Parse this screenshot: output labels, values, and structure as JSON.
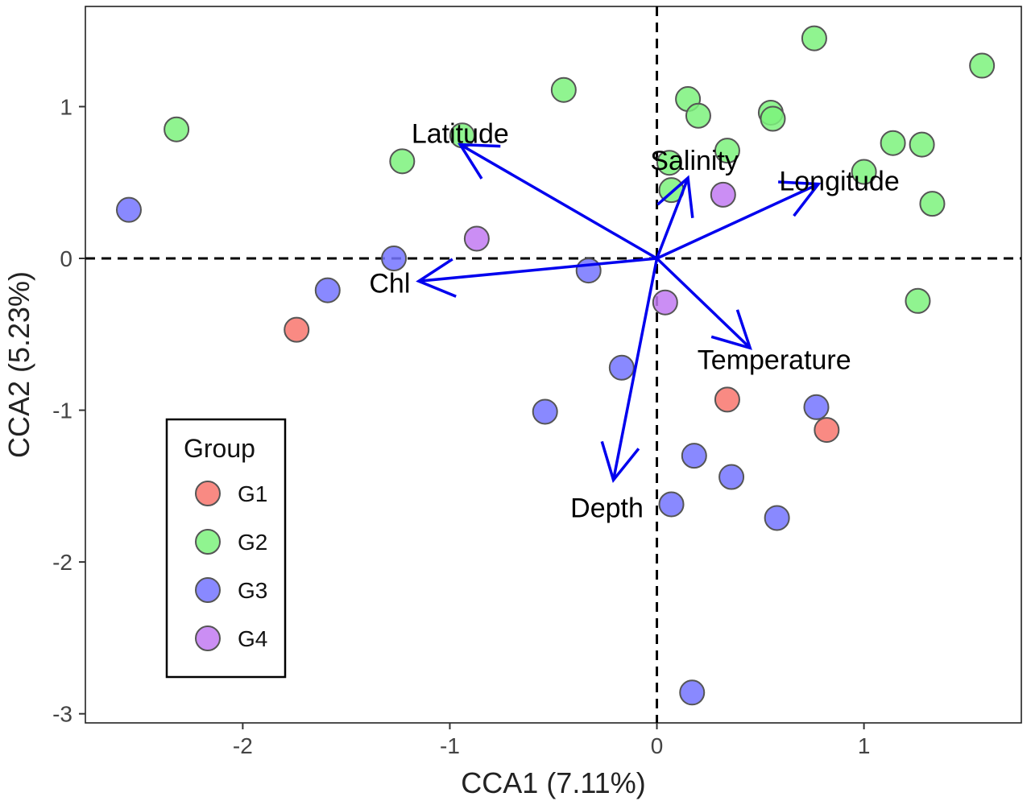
{
  "chart_data": {
    "type": "scatter",
    "title": "",
    "xlabel": "CCA1 (7.11%)",
    "ylabel": "CCA2 (5.23%)",
    "xlim": [
      -2.76,
      1.76
    ],
    "ylim": [
      -3.06,
      1.66
    ],
    "xticks": [
      -2,
      -1,
      0,
      1
    ],
    "yticks": [
      -3,
      -2,
      -1,
      0,
      1
    ],
    "xtick_labels": [
      "-2",
      "-1",
      "0",
      "1"
    ],
    "ytick_labels": [
      "-3",
      "-2",
      "-1",
      "0",
      "1"
    ],
    "grid": false,
    "reference_lines": {
      "x": 0,
      "y": 0,
      "style": "dashed"
    },
    "legend": {
      "title": "Group",
      "placement": "bottom-left",
      "entries": [
        "G1",
        "G2",
        "G3",
        "G4"
      ]
    },
    "series": [
      {
        "name": "G1",
        "color": "#f8766d",
        "points": [
          [
            -1.74,
            -0.47
          ],
          [
            0.34,
            -0.93
          ],
          [
            0.82,
            -1.13
          ]
        ]
      },
      {
        "name": "G2",
        "color": "#7cf27c",
        "points": [
          [
            -2.32,
            0.85
          ],
          [
            -1.23,
            0.64
          ],
          [
            -0.94,
            0.81
          ],
          [
            -0.45,
            1.11
          ],
          [
            0.15,
            1.05
          ],
          [
            0.2,
            0.94
          ],
          [
            0.34,
            0.71
          ],
          [
            0.55,
            0.96
          ],
          [
            0.56,
            0.92
          ],
          [
            0.76,
            1.45
          ],
          [
            1.0,
            0.57
          ],
          [
            1.14,
            0.76
          ],
          [
            1.28,
            0.75
          ],
          [
            1.33,
            0.36
          ],
          [
            1.57,
            1.27
          ],
          [
            1.26,
            -0.28
          ],
          [
            0.06,
            0.63
          ],
          [
            0.07,
            0.45
          ]
        ]
      },
      {
        "name": "G3",
        "color": "#7474ff",
        "points": [
          [
            -2.55,
            0.32
          ],
          [
            -1.27,
            0.0
          ],
          [
            -1.59,
            -0.21
          ],
          [
            -0.33,
            -0.08
          ],
          [
            -0.17,
            -0.72
          ],
          [
            -0.54,
            -1.01
          ],
          [
            0.18,
            -1.3
          ],
          [
            0.36,
            -1.44
          ],
          [
            0.07,
            -1.62
          ],
          [
            0.58,
            -1.71
          ],
          [
            0.77,
            -0.98
          ],
          [
            0.17,
            -2.86
          ]
        ]
      },
      {
        "name": "G4",
        "color": "#c27af2",
        "points": [
          [
            -0.87,
            0.13
          ],
          [
            0.32,
            0.42
          ],
          [
            0.04,
            -0.29
          ]
        ]
      }
    ],
    "vectors": [
      {
        "name": "Latitude",
        "x": -0.95,
        "y": 0.75
      },
      {
        "name": "Salinity",
        "x": 0.15,
        "y": 0.53
      },
      {
        "name": "Longitude",
        "x": 0.78,
        "y": 0.49
      },
      {
        "name": "Chl",
        "x": -1.15,
        "y": -0.15
      },
      {
        "name": "Temperature",
        "x": 0.45,
        "y": -0.59
      },
      {
        "name": "Depth",
        "x": -0.21,
        "y": -1.46
      }
    ],
    "vector_color": "#0000ee"
  }
}
